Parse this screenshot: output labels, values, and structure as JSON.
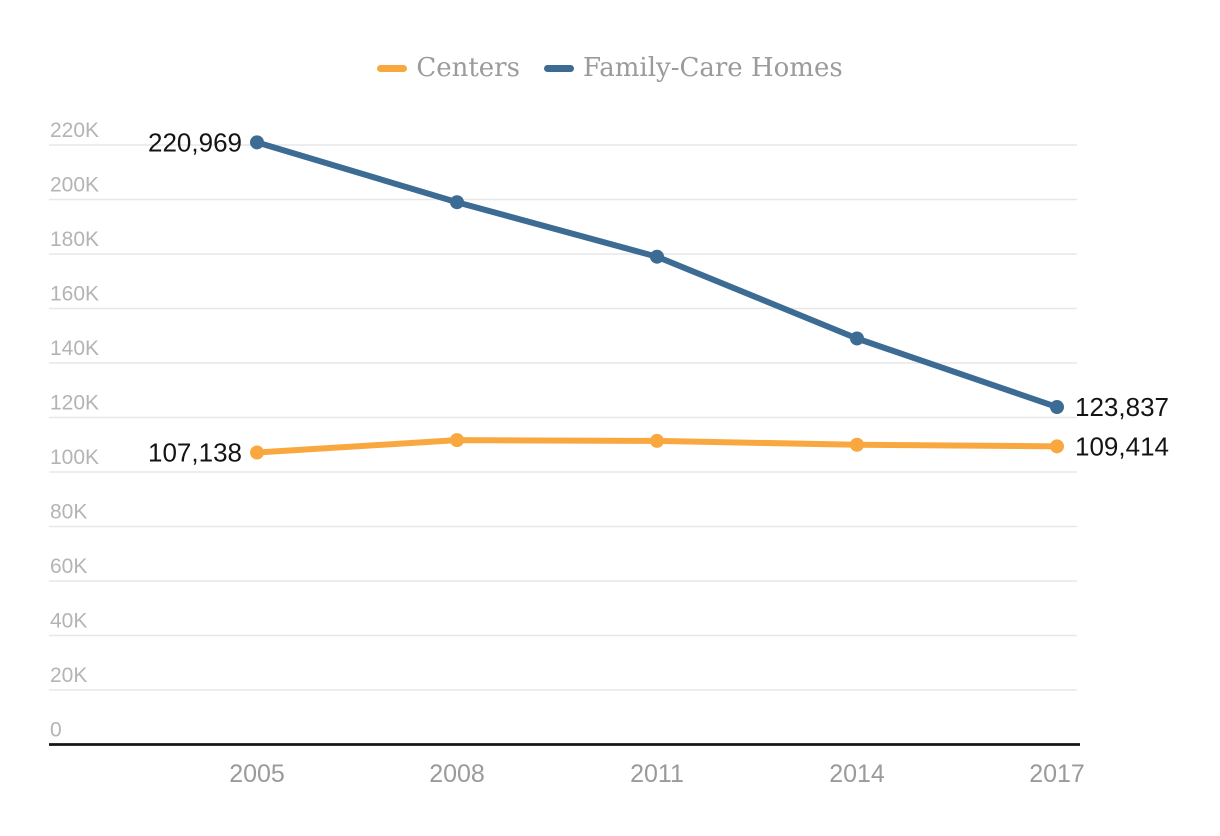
{
  "chart_data": {
    "type": "line",
    "title": "",
    "xlabel": "",
    "ylabel": "",
    "categories": [
      "2005",
      "2008",
      "2011",
      "2014",
      "2017"
    ],
    "series": [
      {
        "name": "Centers",
        "color": "#F9A840",
        "values": [
          107138,
          111700,
          111400,
          110000,
          109414
        ]
      },
      {
        "name": "Family-Care Homes",
        "color": "#3C6B93",
        "values": [
          220969,
          199000,
          179000,
          149000,
          123837
        ]
      }
    ],
    "ylim": [
      0,
      220000
    ],
    "yticks": [
      {
        "value": 0,
        "label": "0"
      },
      {
        "value": 20000,
        "label": "20K"
      },
      {
        "value": 40000,
        "label": "40K"
      },
      {
        "value": 60000,
        "label": "60K"
      },
      {
        "value": 80000,
        "label": "80K"
      },
      {
        "value": 100000,
        "label": "100K"
      },
      {
        "value": 120000,
        "label": "120K"
      },
      {
        "value": 140000,
        "label": "140K"
      },
      {
        "value": 160000,
        "label": "160K"
      },
      {
        "value": 180000,
        "label": "180K"
      },
      {
        "value": 200000,
        "label": "200K"
      },
      {
        "value": 220000,
        "label": "220K"
      }
    ],
    "grid": "horizontal",
    "legend_position": "top-center",
    "annotations": [
      {
        "series": "Family-Care Homes",
        "category": "2005",
        "label": "220,969",
        "side": "left"
      },
      {
        "series": "Centers",
        "category": "2005",
        "label": "107,138",
        "side": "left"
      },
      {
        "series": "Family-Care Homes",
        "category": "2017",
        "label": "123,837",
        "side": "right"
      },
      {
        "series": "Centers",
        "category": "2017",
        "label": "109,414",
        "side": "right"
      }
    ],
    "colors": {
      "background": "#ffffff",
      "grid": "#e7e7e7",
      "axis": "#161616",
      "tick_label": "#b4b4b4",
      "x_label": "#9a9a9a",
      "legend_text": "#9b9b9b",
      "data_label": "#141414"
    }
  }
}
